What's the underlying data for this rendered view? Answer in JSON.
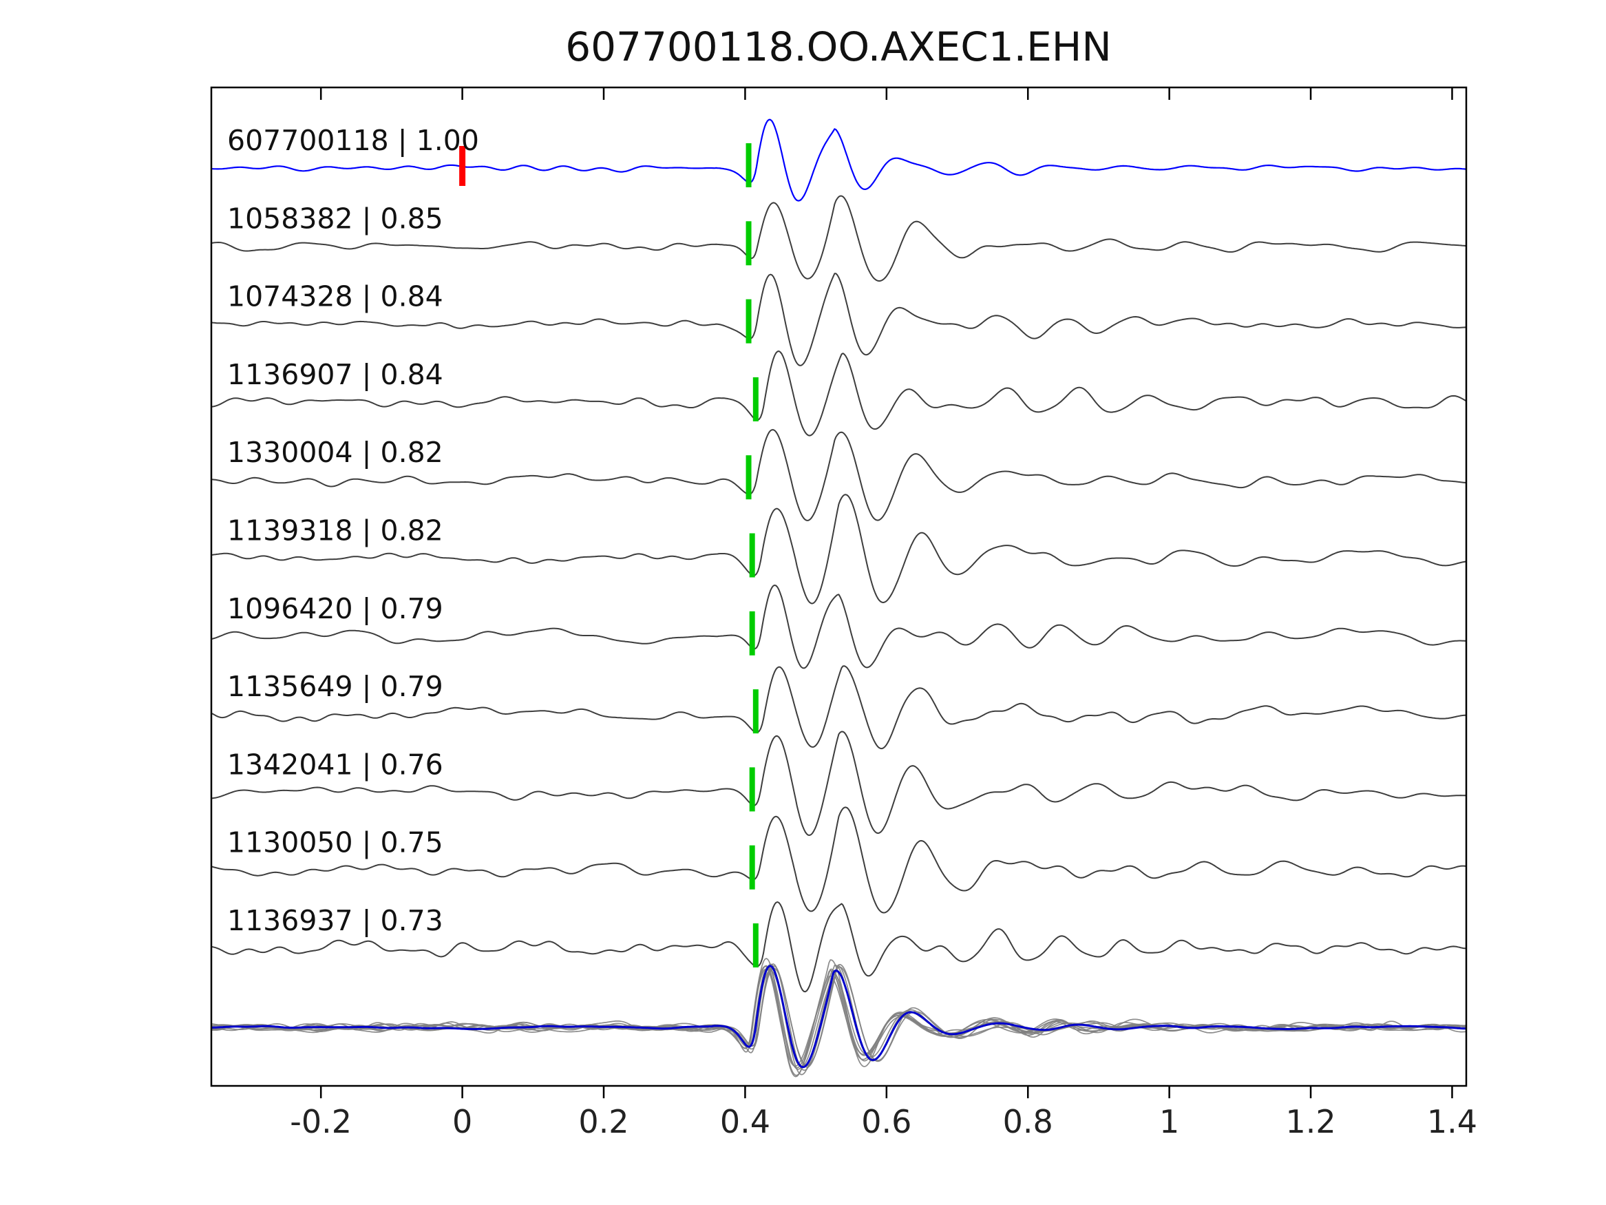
{
  "title": "607700118.OO.AXEC1.EHN",
  "chart_data": {
    "type": "line",
    "title": "607700118.OO.AXEC1.EHN",
    "xlabel": "",
    "ylabel": "",
    "xlim": [
      -0.355,
      1.42
    ],
    "xticks": [
      -0.2,
      0,
      0.2,
      0.4,
      0.6,
      0.8,
      1.0,
      1.2,
      1.4
    ],
    "xtick_labels": [
      "-0.2",
      "0",
      "0.2",
      "0.4",
      "0.6",
      "0.8",
      "1",
      "1.2",
      "1.4"
    ],
    "grid": false,
    "legend": "none",
    "colors": {
      "background": "#ffffff",
      "axis": "#000000",
      "template_trace": "#0000ff",
      "match_trace": "#3d3d3d",
      "overlay_trace": "#808080",
      "stack_trace": "#0000cc",
      "template_pick_marker": "#ff0000",
      "match_pick_marker": "#00cc00"
    },
    "traces": [
      {
        "id": "607700118",
        "correlation": "1.00",
        "label": "607700118 | 1.00",
        "kind": "template",
        "pick_time": 0.405,
        "template_pick_time": 0.0
      },
      {
        "id": "1058382",
        "correlation": "0.85",
        "label": "1058382 | 0.85",
        "kind": "match",
        "pick_time": 0.405
      },
      {
        "id": "1074328",
        "correlation": "0.84",
        "label": "1074328 | 0.84",
        "kind": "match",
        "pick_time": 0.405
      },
      {
        "id": "1136907",
        "correlation": "0.84",
        "label": "1136907 | 0.84",
        "kind": "match",
        "pick_time": 0.415
      },
      {
        "id": "1330004",
        "correlation": "0.82",
        "label": "1330004 | 0.82",
        "kind": "match",
        "pick_time": 0.405
      },
      {
        "id": "1139318",
        "correlation": "0.82",
        "label": "1139318 | 0.82",
        "kind": "match",
        "pick_time": 0.41
      },
      {
        "id": "1096420",
        "correlation": "0.79",
        "label": "1096420 | 0.79",
        "kind": "match",
        "pick_time": 0.41
      },
      {
        "id": "1135649",
        "correlation": "0.79",
        "label": "1135649 | 0.79",
        "kind": "match",
        "pick_time": 0.415
      },
      {
        "id": "1342041",
        "correlation": "0.76",
        "label": "1342041 | 0.76",
        "kind": "match",
        "pick_time": 0.41
      },
      {
        "id": "1130050",
        "correlation": "0.75",
        "label": "1130050 | 0.75",
        "kind": "match",
        "pick_time": 0.41
      },
      {
        "id": "1136937",
        "correlation": "0.73",
        "label": "1136937 | 0.73",
        "kind": "match",
        "pick_time": 0.415
      }
    ],
    "overlay": {
      "description": "all matched traces aligned on pick and overplotted with stacked template",
      "n_gray_traces": 10,
      "alignment_time": 0.415
    },
    "arrival_time_approx": 0.41
  }
}
